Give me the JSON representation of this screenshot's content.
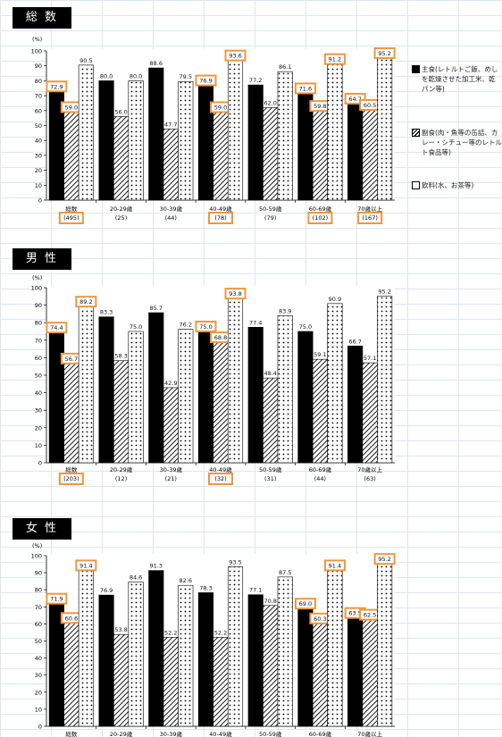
{
  "legend": [
    {
      "label": "主食(レトルトご飯、めしを乾燥させた加工米、乾パン等)"
    },
    {
      "label": "副食(肉・魚等の缶詰、カレー・シチュー等のレトルト食品等)"
    },
    {
      "label": "飲料(水、お茶等)"
    }
  ],
  "colors": {
    "highlight": "#f0963c",
    "bar_solid": "#000000",
    "grid": "#dfe6ee"
  },
  "chart_data": [
    {
      "type": "bar",
      "title": "総 数",
      "ylabel": "(%)",
      "ylim": [
        0,
        100
      ],
      "yticks": [
        0,
        10,
        20,
        30,
        40,
        50,
        60,
        70,
        80,
        90,
        100
      ],
      "categories": [
        "総数",
        "20-29歳",
        "30-39歳",
        "40-49歳",
        "50-59歳",
        "60-69歳",
        "70歳以上"
      ],
      "counts": [
        "(495)",
        "(25)",
        "(44)",
        "(78)",
        "(79)",
        "(102)",
        "(167)"
      ],
      "series": [
        {
          "name": "主食",
          "values": [
            72.9,
            80.0,
            88.6,
            76.9,
            77.2,
            71.6,
            64.7
          ]
        },
        {
          "name": "副食",
          "values": [
            59.0,
            56.0,
            47.7,
            59.0,
            62.0,
            59.8,
            60.5
          ]
        },
        {
          "name": "飲料",
          "values": [
            90.5,
            80.0,
            79.5,
            93.6,
            86.1,
            91.2,
            95.2
          ]
        }
      ],
      "highlighted": [
        [
          0,
          0
        ],
        [
          0,
          1
        ],
        [
          3,
          0
        ],
        [
          3,
          1
        ],
        [
          3,
          2
        ],
        [
          5,
          0
        ],
        [
          5,
          1
        ],
        [
          5,
          2
        ],
        [
          6,
          0
        ],
        [
          6,
          1
        ],
        [
          6,
          2
        ]
      ],
      "highlighted_counts": [
        0,
        3,
        5,
        6
      ]
    },
    {
      "type": "bar",
      "title": "男 性",
      "ylabel": "(%)",
      "ylim": [
        0,
        100
      ],
      "yticks": [
        0,
        10,
        20,
        30,
        40,
        50,
        60,
        70,
        80,
        90,
        100
      ],
      "categories": [
        "総数",
        "20-29歳",
        "30-39歳",
        "40-49歳",
        "50-59歳",
        "60-69歳",
        "70歳以上"
      ],
      "counts": [
        "(203)",
        "(12)",
        "(21)",
        "(32)",
        "(31)",
        "(44)",
        "(63)"
      ],
      "series": [
        {
          "name": "主食",
          "values": [
            74.4,
            83.3,
            85.7,
            75.0,
            77.4,
            75.0,
            66.7
          ]
        },
        {
          "name": "副食",
          "values": [
            56.7,
            58.3,
            42.9,
            68.8,
            48.4,
            59.1,
            57.1
          ]
        },
        {
          "name": "飲料",
          "values": [
            89.2,
            75.0,
            76.2,
            93.8,
            83.9,
            90.9,
            95.2
          ]
        }
      ],
      "highlighted": [
        [
          0,
          0
        ],
        [
          0,
          1
        ],
        [
          0,
          2
        ],
        [
          3,
          0
        ],
        [
          3,
          1
        ],
        [
          3,
          2
        ]
      ],
      "highlighted_counts": [
        0,
        3
      ]
    },
    {
      "type": "bar",
      "title": "女 性",
      "ylabel": "(%)",
      "ylim": [
        0,
        100
      ],
      "yticks": [
        0,
        10,
        20,
        30,
        40,
        50,
        60,
        70,
        80,
        90,
        100
      ],
      "categories": [
        "総数",
        "20-29歳",
        "30-39歳",
        "40-49歳",
        "50-59歳",
        "60-69歳",
        "70歳以上"
      ],
      "counts": [
        "",
        "",
        "",
        "",
        "",
        "",
        ""
      ],
      "series": [
        {
          "name": "主食",
          "values": [
            71.9,
            76.9,
            91.3,
            78.3,
            77.1,
            69.0,
            63.5
          ]
        },
        {
          "name": "副食",
          "values": [
            60.6,
            53.8,
            52.2,
            52.2,
            70.8,
            60.3,
            62.5
          ]
        },
        {
          "name": "飲料",
          "values": [
            91.4,
            84.6,
            82.6,
            93.5,
            87.5,
            91.4,
            95.2
          ]
        }
      ],
      "highlighted": [
        [
          0,
          0
        ],
        [
          0,
          1
        ],
        [
          0,
          2
        ],
        [
          5,
          0
        ],
        [
          5,
          1
        ],
        [
          5,
          2
        ],
        [
          6,
          0
        ],
        [
          6,
          1
        ],
        [
          6,
          2
        ]
      ],
      "highlighted_counts": []
    }
  ]
}
